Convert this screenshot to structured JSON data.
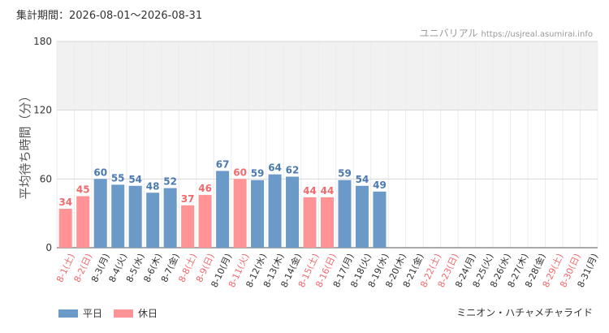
{
  "header": {
    "period_label": "集計期間：2026-08-01～2026-08-31",
    "site_name": "ユニバリアル",
    "site_url": "https://usjreal.asumirai.info"
  },
  "footer": {
    "attraction_name": "ミニオン・ハチャメチャライド"
  },
  "colors": {
    "weekday": "#6b9ac8",
    "weekday_label": "#4a7ab0",
    "holiday": "#ff9396",
    "holiday_label": "#f06a6e",
    "band": "#f1f1f1",
    "grid": "#d8d8d8"
  },
  "chart_data": {
    "type": "bar",
    "ylabel": "平均待ち時間（分）",
    "ylim": [
      0,
      180
    ],
    "yticks": [
      0,
      60,
      120,
      180
    ],
    "shaded_band": [
      120,
      180
    ],
    "categories": [
      "8-1(土)",
      "8-2(日)",
      "8-3(月)",
      "8-4(火)",
      "8-5(水)",
      "8-6(木)",
      "8-7(金)",
      "8-8(土)",
      "8-9(日)",
      "8-10(月)",
      "8-11(火)",
      "8-12(水)",
      "8-13(木)",
      "8-14(金)",
      "8-15(土)",
      "8-16(日)",
      "8-17(月)",
      "8-18(火)",
      "8-19(水)",
      "8-20(木)",
      "8-21(金)",
      "8-22(土)",
      "8-23(日)",
      "8-24(月)",
      "8-25(火)",
      "8-26(水)",
      "8-27(木)",
      "8-28(金)",
      "8-29(土)",
      "8-30(日)",
      "8-31(月)"
    ],
    "values": [
      34,
      45,
      60,
      55,
      54,
      48,
      52,
      37,
      46,
      67,
      60,
      59,
      64,
      62,
      44,
      44,
      59,
      54,
      49,
      null,
      null,
      null,
      null,
      null,
      null,
      null,
      null,
      null,
      null,
      null,
      null
    ],
    "day_type": [
      "holiday",
      "holiday",
      "weekday",
      "weekday",
      "weekday",
      "weekday",
      "weekday",
      "holiday",
      "holiday",
      "weekday",
      "holiday",
      "weekday",
      "weekday",
      "weekday",
      "holiday",
      "holiday",
      "weekday",
      "weekday",
      "weekday",
      "weekday",
      "weekday",
      "holiday",
      "holiday",
      "weekday",
      "weekday",
      "weekday",
      "weekday",
      "weekday",
      "holiday",
      "holiday",
      "weekday"
    ],
    "legend": [
      {
        "name": "平日",
        "type": "weekday"
      },
      {
        "name": "休日",
        "type": "holiday"
      }
    ],
    "legend_position": "bottom-left",
    "grid": true
  }
}
